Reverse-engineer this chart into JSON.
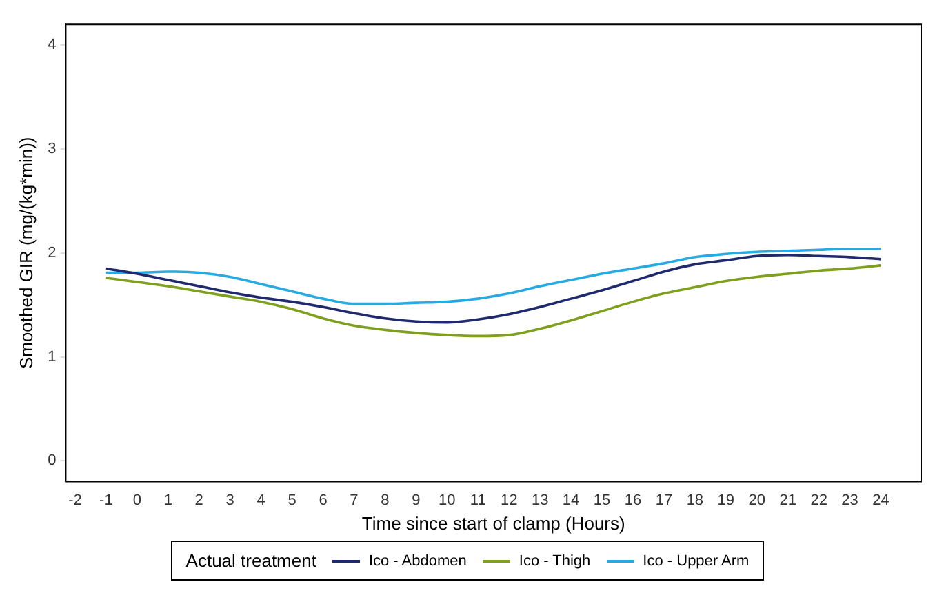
{
  "chart_data": {
    "type": "line",
    "xlabel": "Time since start of clamp (Hours)",
    "ylabel": "Smoothed GIR (mg/(kg*min))",
    "legend_title": "Actual treatment",
    "legend": "bottom",
    "grid": false,
    "marker": "none",
    "line_style": "solid",
    "x": [
      -1,
      0,
      1,
      2,
      3,
      4,
      5,
      6,
      7,
      8,
      9,
      10,
      11,
      12,
      13,
      14,
      15,
      16,
      17,
      18,
      19,
      20,
      21,
      22,
      23,
      24
    ],
    "xlim": [
      -2.3,
      25.3
    ],
    "xticks": [
      -2,
      -1,
      0,
      1,
      2,
      3,
      4,
      5,
      6,
      7,
      8,
      9,
      10,
      11,
      12,
      13,
      14,
      15,
      16,
      17,
      18,
      19,
      20,
      21,
      22,
      23,
      24
    ],
    "ylim": [
      -0.2,
      4.2
    ],
    "yticks": [
      0,
      1,
      2,
      3,
      4
    ],
    "series": [
      {
        "name": "Ico - Abdomen",
        "color": "#1f2a6e",
        "values": [
          1.85,
          1.8,
          1.74,
          1.68,
          1.62,
          1.57,
          1.53,
          1.48,
          1.42,
          1.37,
          1.34,
          1.33,
          1.36,
          1.41,
          1.48,
          1.56,
          1.64,
          1.73,
          1.82,
          1.89,
          1.93,
          1.97,
          1.98,
          1.97,
          1.96,
          1.94
        ]
      },
      {
        "name": "Ico - Thigh",
        "color": "#7f9f1f",
        "values": [
          1.76,
          1.72,
          1.68,
          1.63,
          1.58,
          1.53,
          1.46,
          1.37,
          1.3,
          1.26,
          1.23,
          1.21,
          1.2,
          1.21,
          1.27,
          1.35,
          1.44,
          1.53,
          1.61,
          1.67,
          1.73,
          1.77,
          1.8,
          1.83,
          1.85,
          1.88
        ]
      },
      {
        "name": "Ico - Upper Arm",
        "color": "#27aae1",
        "values": [
          1.81,
          1.81,
          1.82,
          1.81,
          1.77,
          1.7,
          1.63,
          1.56,
          1.51,
          1.51,
          1.52,
          1.53,
          1.56,
          1.61,
          1.68,
          1.74,
          1.8,
          1.85,
          1.9,
          1.96,
          1.99,
          2.01,
          2.02,
          2.03,
          2.04,
          2.04
        ]
      }
    ]
  }
}
